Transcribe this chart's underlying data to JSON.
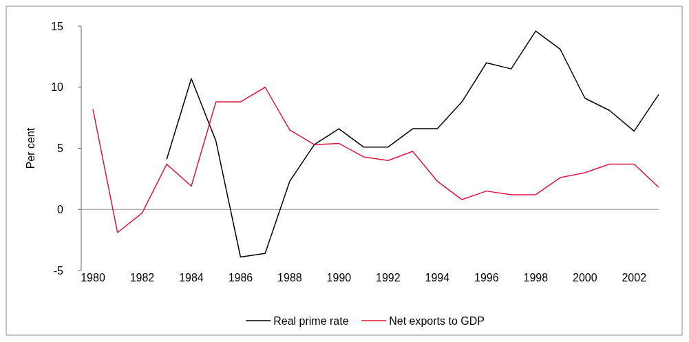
{
  "chart_data": {
    "type": "line",
    "ylabel": "Per cent",
    "x": [
      1980,
      1981,
      1982,
      1983,
      1984,
      1985,
      1986,
      1987,
      1988,
      1989,
      1990,
      1991,
      1992,
      1993,
      1994,
      1995,
      1996,
      1997,
      1998,
      1999,
      2000,
      2001,
      2002,
      2003
    ],
    "xlim": [
      1980,
      2003
    ],
    "xticks": [
      1980,
      1982,
      1984,
      1986,
      1988,
      1990,
      1992,
      1994,
      1996,
      1998,
      2000,
      2002
    ],
    "ylim": [
      -5,
      15
    ],
    "yticks": [
      -5,
      0,
      5,
      10,
      15
    ],
    "series": [
      {
        "name": "Real prime rate",
        "color": "#000000",
        "values": [
          null,
          null,
          null,
          4.1,
          10.7,
          5.6,
          -3.9,
          -3.6,
          2.3,
          5.3,
          6.6,
          5.1,
          5.1,
          6.6,
          6.6,
          8.8,
          12.0,
          11.5,
          14.6,
          13.1,
          9.1,
          8.1,
          6.4,
          9.4
        ]
      },
      {
        "name": "Net exports to GDP",
        "color": "#e0143c",
        "values": [
          8.2,
          -1.9,
          -0.3,
          3.7,
          1.9,
          8.8,
          8.8,
          10.0,
          6.5,
          5.3,
          5.4,
          4.3,
          4.0,
          4.75,
          2.3,
          0.8,
          1.5,
          1.2,
          1.2,
          2.6,
          3.0,
          3.7,
          3.7,
          1.8
        ]
      }
    ],
    "ref_lines": [
      {
        "axis": "y",
        "value": 0,
        "color": "#999999"
      }
    ],
    "grid": false,
    "legend": "bottom",
    "line_style": "solid"
  }
}
